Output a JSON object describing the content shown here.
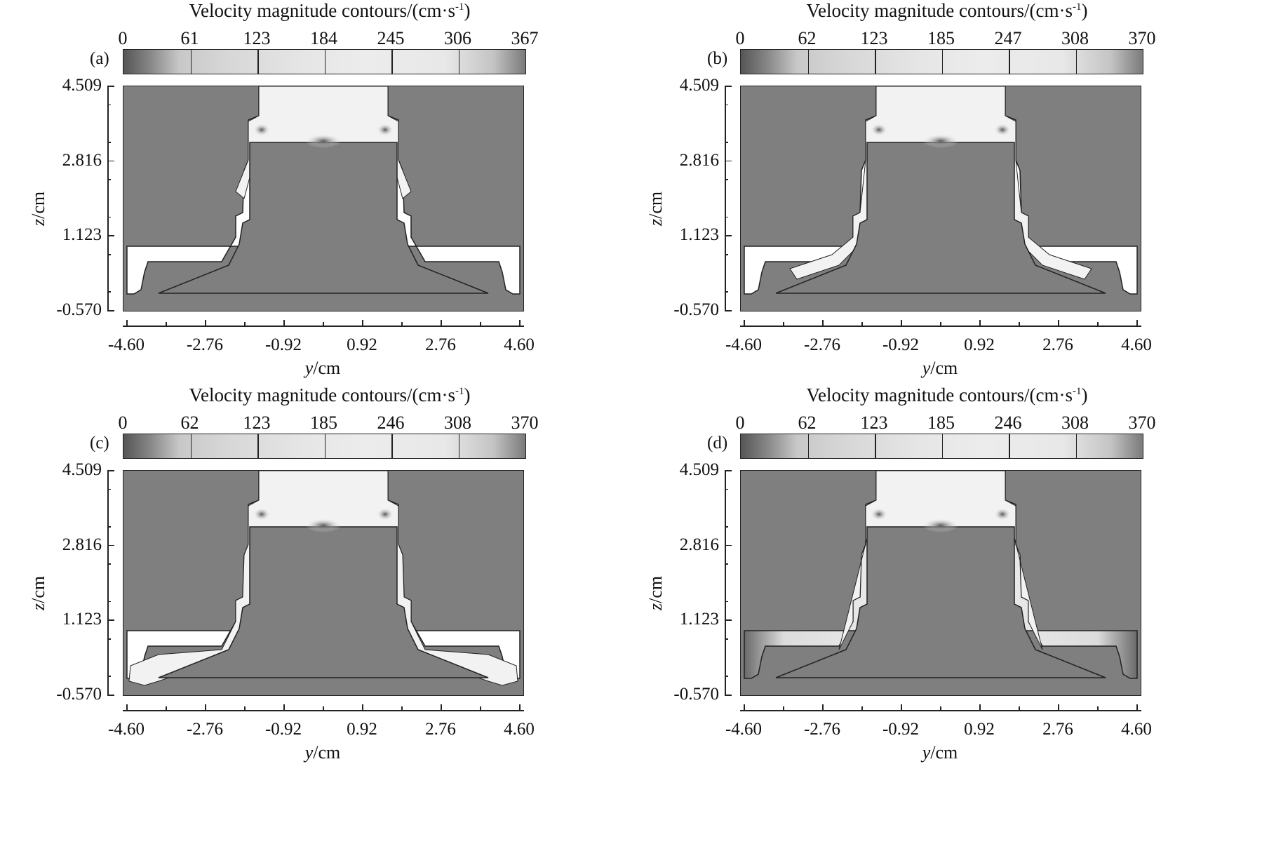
{
  "figure": {
    "x_axis_label_var": "y",
    "x_axis_label_unit": "/cm",
    "y_axis_label_var": "z",
    "y_axis_label_unit": "/cm",
    "panels": [
      {
        "label": "(a)",
        "title": "Velocity magnitude contours/(cm·s",
        "title_exp": "-1",
        "title_end": ")",
        "colorbar_ticks": [
          "0",
          "61",
          "123",
          "184",
          "245",
          "306",
          "367"
        ],
        "y_ticks": [
          "4.509",
          "2.816",
          "1.123",
          "-0.570"
        ],
        "x_ticks": [
          "-4.60",
          "-2.76",
          "-0.92",
          "0.92",
          "2.76",
          "4.60"
        ],
        "variant": "a"
      },
      {
        "label": "(b)",
        "title": "Velocity magnitude contours/(cm·s",
        "title_exp": "-1",
        "title_end": ")",
        "colorbar_ticks": [
          "0",
          "62",
          "123",
          "185",
          "247",
          "308",
          "370"
        ],
        "y_ticks": [
          "4.509",
          "2.816",
          "1.123",
          "-0.570"
        ],
        "x_ticks": [
          "-4.60",
          "-2.76",
          "-0.92",
          "0.92",
          "2.76",
          "4.60"
        ],
        "variant": "b"
      },
      {
        "label": "(c)",
        "title": "Velocity magnitude contours/(cm·s",
        "title_exp": "-1",
        "title_end": ")",
        "colorbar_ticks": [
          "0",
          "62",
          "123",
          "185",
          "246",
          "308",
          "370"
        ],
        "y_ticks": [
          "4.509",
          "2.816",
          "1.123",
          "-0.570"
        ],
        "x_ticks": [
          "-4.60",
          "-2.76",
          "-0.92",
          "0.92",
          "2.76",
          "4.60"
        ],
        "variant": "c"
      },
      {
        "label": "(d)",
        "title": "Velocity magnitude contours/(cm·s",
        "title_exp": "-1",
        "title_end": ")",
        "colorbar_ticks": [
          "0",
          "62",
          "123",
          "185",
          "246",
          "308",
          "370"
        ],
        "y_ticks": [
          "4.509",
          "2.816",
          "1.123",
          "-0.570"
        ],
        "x_ticks": [
          "-4.60",
          "-2.76",
          "-0.92",
          "0.92",
          "2.76",
          "4.60"
        ],
        "variant": "d"
      }
    ]
  },
  "colors": {
    "mould_fill": "#7f7f7f",
    "melt_fill": "#f2f2f2",
    "empty_fill": "#ffffff",
    "outline": "#222222"
  }
}
